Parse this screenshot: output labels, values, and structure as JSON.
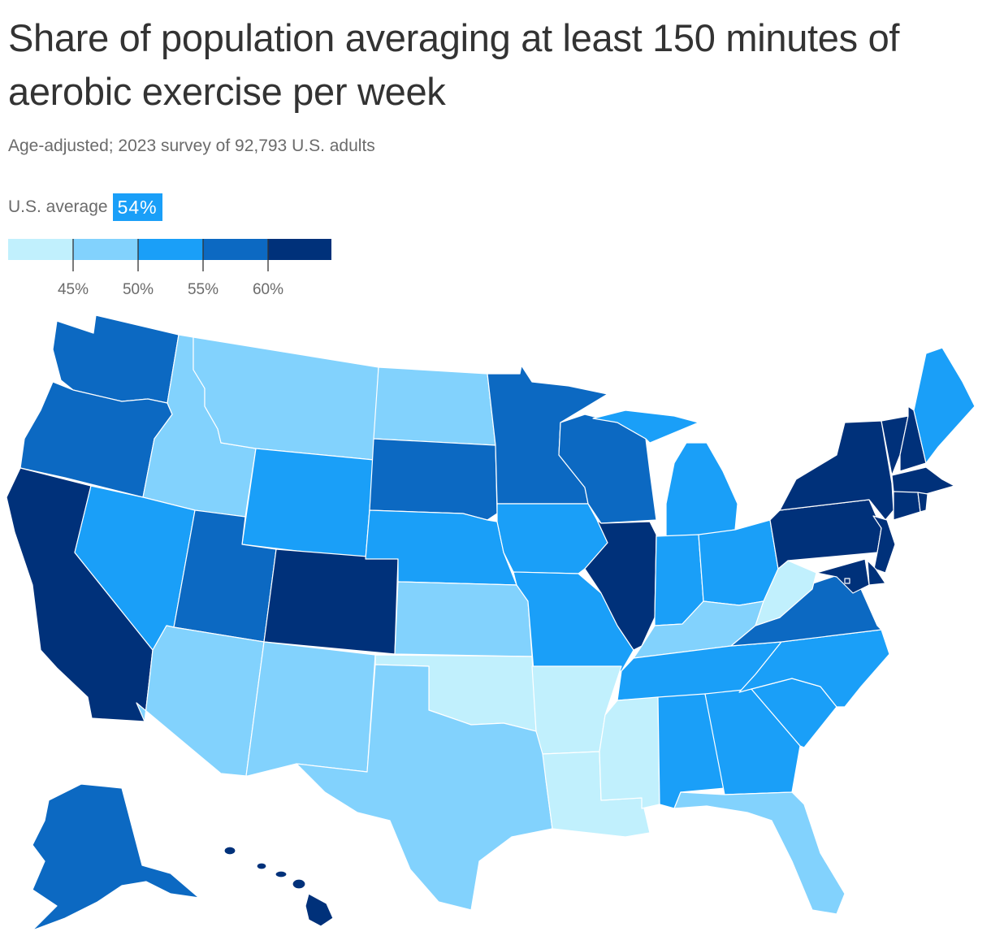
{
  "title": "Share of population averaging at least 150 minutes of aerobic exercise per week",
  "subtitle": "Age-adjusted; 2023 survey of 92,793 U.S. adults",
  "average": {
    "label": "U.S. average",
    "value": "54%"
  },
  "legend": {
    "colors": [
      "#c1f0fd",
      "#82d2fd",
      "#1a9ff8",
      "#0c69c2",
      "#00317a"
    ],
    "ticks": [
      "45%",
      "50%",
      "55%",
      "60%"
    ]
  },
  "map_data": {
    "scale_bins": [
      "<45%",
      "45–50%",
      "50–55%",
      "55–60%",
      ">60%"
    ],
    "states": {
      "WA": 4,
      "OR": 4,
      "CA": 5,
      "ID": 2,
      "NV": 3,
      "MT": 2,
      "WY": 3,
      "UT": 4,
      "AZ": 2,
      "CO": 5,
      "NM": 2,
      "ND": 2,
      "SD": 4,
      "NE": 3,
      "KS": 2,
      "OK": 1,
      "TX": 2,
      "MN": 4,
      "IA": 3,
      "MO": 3,
      "AR": 1,
      "LA": 1,
      "WI": 4,
      "IL": 5,
      "MI": 3,
      "IN": 3,
      "OH": 3,
      "KY": 2,
      "TN": 3,
      "MS": 1,
      "AL": 3,
      "GA": 3,
      "FL": 2,
      "SC": 3,
      "NC": 3,
      "VA": 4,
      "WV": 1,
      "PA": 5,
      "NY": 5,
      "VT": 5,
      "NH": 5,
      "ME": 3,
      "MA": 5,
      "RI": 5,
      "CT": 5,
      "NJ": 5,
      "DE": 5,
      "MD": 5,
      "DC": 5,
      "AK": 4,
      "HI": 5
    }
  }
}
